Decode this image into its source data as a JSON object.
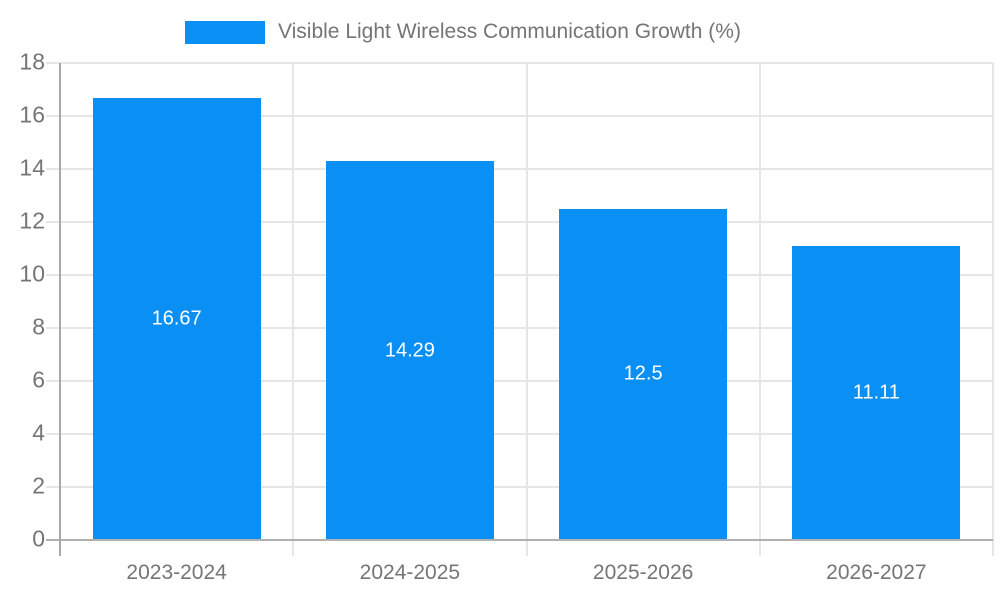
{
  "legend": {
    "label": "Visible Light Wireless Communication Growth (%)"
  },
  "chart_data": {
    "type": "bar",
    "title": "Visible Light Wireless Communication Growth (%)",
    "categories": [
      "2023-2024",
      "2024-2025",
      "2025-2026",
      "2026-2027"
    ],
    "values": [
      16.67,
      14.29,
      12.5,
      11.11
    ],
    "bar_labels": [
      "16.67",
      "14.29",
      "12.5",
      "11.11"
    ],
    "xlabel": "",
    "ylabel": "",
    "ylim": [
      0,
      18
    ],
    "yticks": [
      0,
      2,
      4,
      6,
      8,
      10,
      12,
      14,
      16,
      18
    ],
    "grid": true,
    "legend_position": "top-center",
    "bar_color": "#0a8ff5",
    "value_label_color": "#ffffff",
    "tick_label_color": "#757575",
    "gridline_color": "#e6e6e6",
    "axis_line_color": "#b0b0b0",
    "background_color": "#ffffff"
  }
}
